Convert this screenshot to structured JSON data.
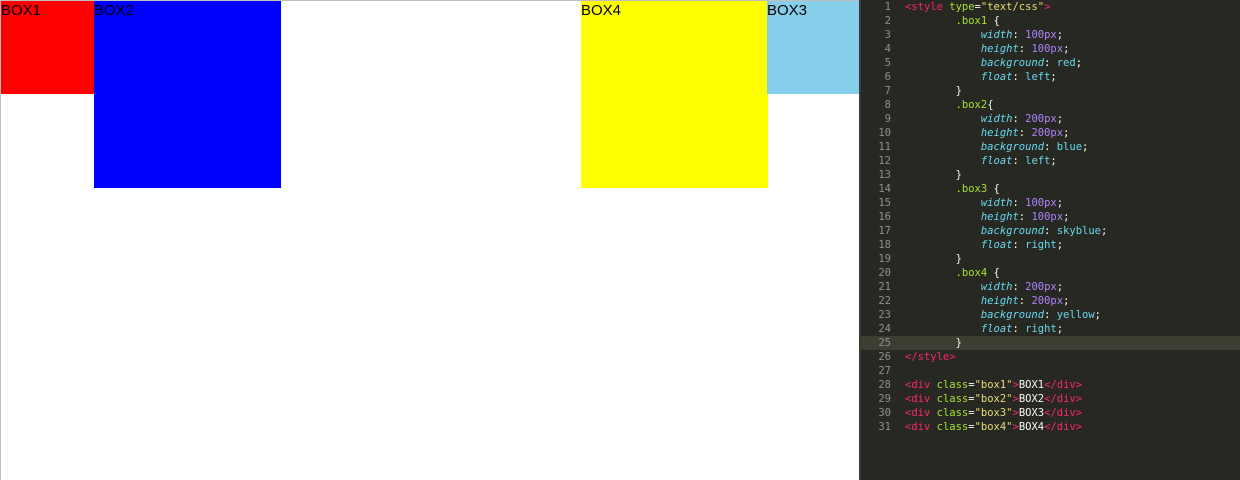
{
  "preview": {
    "boxes": [
      {
        "id": "box1",
        "label": "BOX1",
        "color": "#ff0000"
      },
      {
        "id": "box2",
        "label": "BOX2",
        "color": "#0000ff"
      },
      {
        "id": "box4",
        "label": "BOX4",
        "color": "#ffff00"
      },
      {
        "id": "box3",
        "label": "BOX3",
        "color": "#87ceeb"
      }
    ]
  },
  "editor": {
    "current_line": 25,
    "lines": [
      {
        "n": "1",
        "tokens": [
          [
            "tag",
            "<style"
          ],
          [
            "attr",
            " type"
          ],
          [
            "punc",
            "="
          ],
          [
            "str",
            "\"text/css\""
          ],
          [
            "tag",
            ">"
          ]
        ]
      },
      {
        "n": "2",
        "tokens": [
          [
            "text",
            "        "
          ],
          [
            "sel",
            ".box1"
          ],
          [
            "punc",
            " {"
          ]
        ]
      },
      {
        "n": "3",
        "tokens": [
          [
            "text",
            "            "
          ],
          [
            "prop",
            "width"
          ],
          [
            "punc",
            ": "
          ],
          [
            "num",
            "100px"
          ],
          [
            "punc",
            ";"
          ]
        ]
      },
      {
        "n": "4",
        "tokens": [
          [
            "text",
            "            "
          ],
          [
            "prop",
            "height"
          ],
          [
            "punc",
            ": "
          ],
          [
            "num",
            "100px"
          ],
          [
            "punc",
            ";"
          ]
        ]
      },
      {
        "n": "5",
        "tokens": [
          [
            "text",
            "            "
          ],
          [
            "prop",
            "background"
          ],
          [
            "punc",
            ": "
          ],
          [
            "val",
            "red"
          ],
          [
            "punc",
            ";"
          ]
        ]
      },
      {
        "n": "6",
        "tokens": [
          [
            "text",
            "            "
          ],
          [
            "prop",
            "float"
          ],
          [
            "punc",
            ": "
          ],
          [
            "val",
            "left"
          ],
          [
            "punc",
            ";"
          ]
        ]
      },
      {
        "n": "7",
        "tokens": [
          [
            "text",
            "        "
          ],
          [
            "punc",
            "}"
          ]
        ]
      },
      {
        "n": "8",
        "tokens": [
          [
            "text",
            "        "
          ],
          [
            "sel",
            ".box2"
          ],
          [
            "punc",
            "{"
          ]
        ]
      },
      {
        "n": "9",
        "tokens": [
          [
            "text",
            "            "
          ],
          [
            "prop",
            "width"
          ],
          [
            "punc",
            ": "
          ],
          [
            "num",
            "200px"
          ],
          [
            "punc",
            ";"
          ]
        ]
      },
      {
        "n": "10",
        "tokens": [
          [
            "text",
            "            "
          ],
          [
            "prop",
            "height"
          ],
          [
            "punc",
            ": "
          ],
          [
            "num",
            "200px"
          ],
          [
            "punc",
            ";"
          ]
        ]
      },
      {
        "n": "11",
        "tokens": [
          [
            "text",
            "            "
          ],
          [
            "prop",
            "background"
          ],
          [
            "punc",
            ": "
          ],
          [
            "val",
            "blue"
          ],
          [
            "punc",
            ";"
          ]
        ]
      },
      {
        "n": "12",
        "tokens": [
          [
            "text",
            "            "
          ],
          [
            "prop",
            "float"
          ],
          [
            "punc",
            ": "
          ],
          [
            "val",
            "left"
          ],
          [
            "punc",
            ";"
          ]
        ]
      },
      {
        "n": "13",
        "tokens": [
          [
            "text",
            "        "
          ],
          [
            "punc",
            "}"
          ]
        ]
      },
      {
        "n": "14",
        "tokens": [
          [
            "text",
            "        "
          ],
          [
            "sel",
            ".box3"
          ],
          [
            "punc",
            " {"
          ]
        ]
      },
      {
        "n": "15",
        "tokens": [
          [
            "text",
            "            "
          ],
          [
            "prop",
            "width"
          ],
          [
            "punc",
            ": "
          ],
          [
            "num",
            "100px"
          ],
          [
            "punc",
            ";"
          ]
        ]
      },
      {
        "n": "16",
        "tokens": [
          [
            "text",
            "            "
          ],
          [
            "prop",
            "height"
          ],
          [
            "punc",
            ": "
          ],
          [
            "num",
            "100px"
          ],
          [
            "punc",
            ";"
          ]
        ]
      },
      {
        "n": "17",
        "tokens": [
          [
            "text",
            "            "
          ],
          [
            "prop",
            "background"
          ],
          [
            "punc",
            ": "
          ],
          [
            "val",
            "skyblue"
          ],
          [
            "punc",
            ";"
          ]
        ]
      },
      {
        "n": "18",
        "tokens": [
          [
            "text",
            "            "
          ],
          [
            "prop",
            "float"
          ],
          [
            "punc",
            ": "
          ],
          [
            "val",
            "right"
          ],
          [
            "punc",
            ";"
          ]
        ]
      },
      {
        "n": "19",
        "tokens": [
          [
            "text",
            "        "
          ],
          [
            "punc",
            "}"
          ]
        ]
      },
      {
        "n": "20",
        "tokens": [
          [
            "text",
            "        "
          ],
          [
            "sel",
            ".box4"
          ],
          [
            "punc",
            " {"
          ]
        ]
      },
      {
        "n": "21",
        "tokens": [
          [
            "text",
            "            "
          ],
          [
            "prop",
            "width"
          ],
          [
            "punc",
            ": "
          ],
          [
            "num",
            "200px"
          ],
          [
            "punc",
            ";"
          ]
        ]
      },
      {
        "n": "22",
        "tokens": [
          [
            "text",
            "            "
          ],
          [
            "prop",
            "height"
          ],
          [
            "punc",
            ": "
          ],
          [
            "num",
            "200px"
          ],
          [
            "punc",
            ";"
          ]
        ]
      },
      {
        "n": "23",
        "tokens": [
          [
            "text",
            "            "
          ],
          [
            "prop",
            "background"
          ],
          [
            "punc",
            ": "
          ],
          [
            "val",
            "yellow"
          ],
          [
            "punc",
            ";"
          ]
        ]
      },
      {
        "n": "24",
        "tokens": [
          [
            "text",
            "            "
          ],
          [
            "prop",
            "float"
          ],
          [
            "punc",
            ": "
          ],
          [
            "val",
            "right"
          ],
          [
            "punc",
            ";"
          ]
        ]
      },
      {
        "n": "25",
        "tokens": [
          [
            "text",
            "        "
          ],
          [
            "punc",
            "}"
          ]
        ]
      },
      {
        "n": "26",
        "tokens": [
          [
            "tag",
            "</style>"
          ]
        ]
      },
      {
        "n": "27",
        "tokens": []
      },
      {
        "n": "28",
        "tokens": [
          [
            "tag",
            "<div"
          ],
          [
            "attr",
            " class"
          ],
          [
            "punc",
            "="
          ],
          [
            "str",
            "\"box1\""
          ],
          [
            "tag",
            ">"
          ],
          [
            "text",
            "BOX1"
          ],
          [
            "tag",
            "</div>"
          ]
        ]
      },
      {
        "n": "29",
        "tokens": [
          [
            "tag",
            "<div"
          ],
          [
            "attr",
            " class"
          ],
          [
            "punc",
            "="
          ],
          [
            "str",
            "\"box2\""
          ],
          [
            "tag",
            ">"
          ],
          [
            "text",
            "BOX2"
          ],
          [
            "tag",
            "</div>"
          ]
        ]
      },
      {
        "n": "30",
        "tokens": [
          [
            "tag",
            "<div"
          ],
          [
            "attr",
            " class"
          ],
          [
            "punc",
            "="
          ],
          [
            "str",
            "\"box3\""
          ],
          [
            "tag",
            ">"
          ],
          [
            "text",
            "BOX3"
          ],
          [
            "tag",
            "</div>"
          ]
        ]
      },
      {
        "n": "31",
        "tokens": [
          [
            "tag",
            "<div"
          ],
          [
            "attr",
            " class"
          ],
          [
            "punc",
            "="
          ],
          [
            "str",
            "\"box4\""
          ],
          [
            "tag",
            ">"
          ],
          [
            "text",
            "BOX4"
          ],
          [
            "tag",
            "</div>"
          ]
        ]
      }
    ]
  }
}
